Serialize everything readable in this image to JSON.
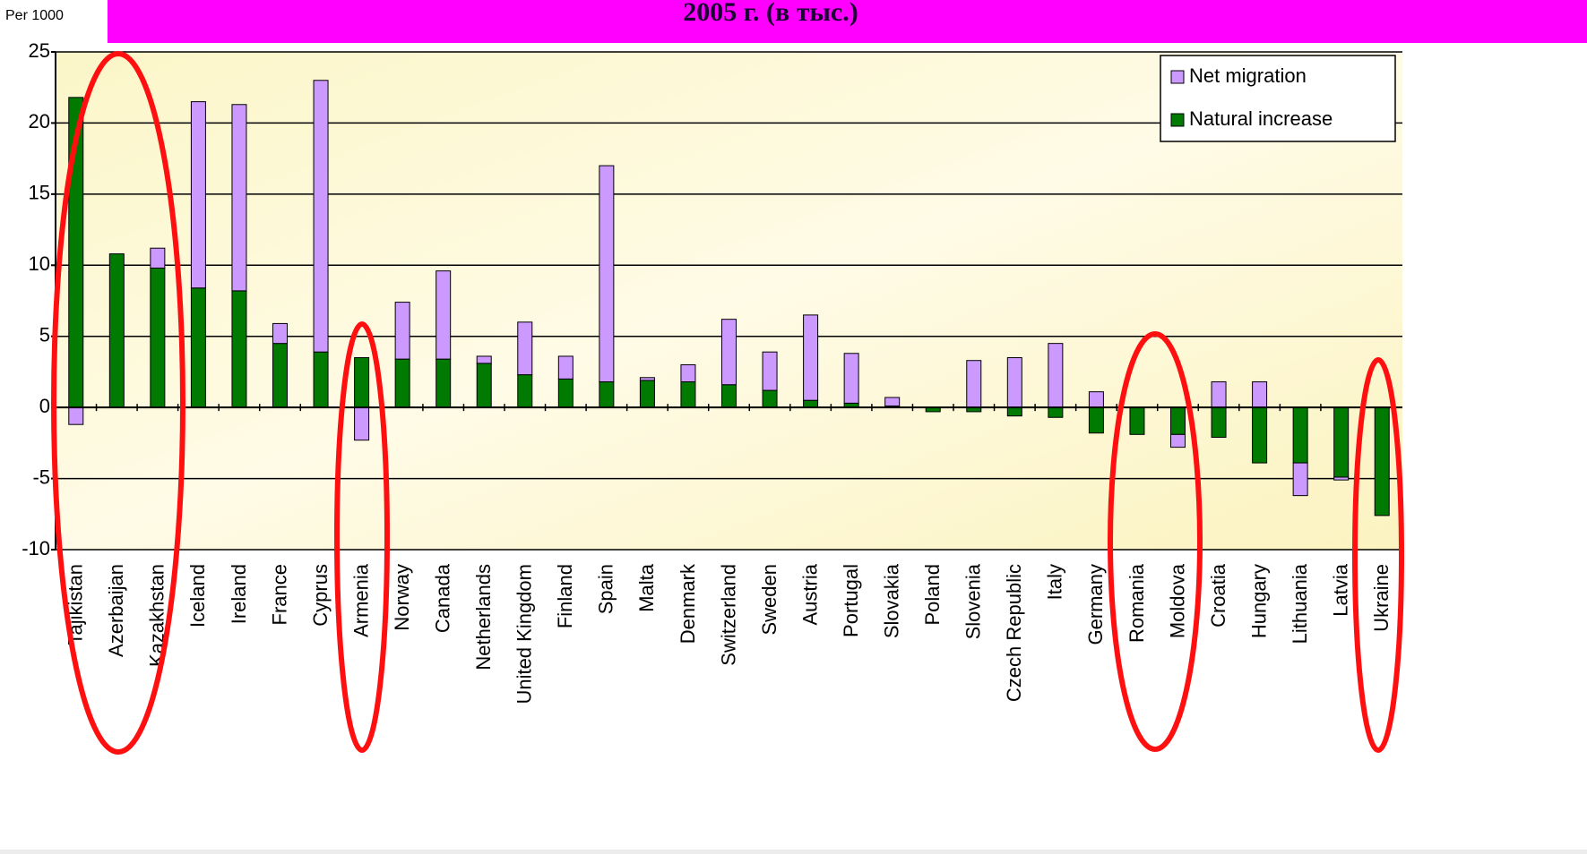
{
  "chart_data": {
    "type": "stacked_bar",
    "title": "2005 г. (в тыс.)",
    "y_label": "Per 1000",
    "categories": [
      "Tajikistan",
      "Azerbaijan",
      "Kazakhstan",
      "Iceland",
      "Ireland",
      "France",
      "Cyprus",
      "Armenia",
      "Norway",
      "Canada",
      "Netherlands",
      "United Kingdom",
      "Finland",
      "Spain",
      "Malta",
      "Denmark",
      "Switzerland",
      "Sweden",
      "Austria",
      "Portugal",
      "Slovakia",
      "Poland",
      "Slovenia",
      "Czech Republic",
      "Italy",
      "Germany",
      "Romania",
      "Moldova",
      "Croatia",
      "Hungary",
      "Lithuania",
      "Latvia",
      "Ukraine"
    ],
    "series": [
      {
        "name": "Natural increase",
        "color": "#007a00",
        "values": [
          21.8,
          10.8,
          9.8,
          8.4,
          8.2,
          4.5,
          3.9,
          3.5,
          3.4,
          3.4,
          3.1,
          2.3,
          2.0,
          1.8,
          1.9,
          1.8,
          1.6,
          1.2,
          0.5,
          0.3,
          0.1,
          -0.3,
          -0.3,
          -0.6,
          -0.7,
          -1.8,
          -1.9,
          -1.9,
          -2.1,
          -3.9,
          -3.9,
          -4.9,
          -7.6
        ]
      },
      {
        "name": "Net migration",
        "color": "#cc99ff",
        "values": [
          -1.2,
          0,
          1.4,
          13.1,
          13.1,
          1.4,
          19.1,
          -2.3,
          4.0,
          6.2,
          0.5,
          3.7,
          1.6,
          15.2,
          0.2,
          1.2,
          4.6,
          2.7,
          6.0,
          3.5,
          0.6,
          0,
          3.3,
          3.5,
          4.5,
          1.1,
          0,
          -0.9,
          1.8,
          1.8,
          -2.3,
          -0.2,
          0
        ]
      }
    ],
    "ylim": [
      -10,
      25
    ],
    "yticks": [
      -10,
      -5,
      0,
      5,
      10,
      15,
      20,
      25
    ],
    "grid": true,
    "legend": "top-right"
  }
}
